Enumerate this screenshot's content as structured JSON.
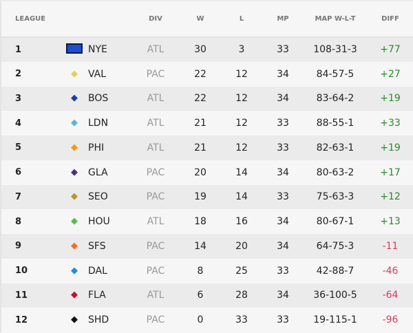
{
  "headers": {
    "league": "LEAGUE",
    "div": "DIV",
    "w": "W",
    "l": "L",
    "mp": "MP",
    "map": "MAP W-L-T",
    "diff": "DIFF"
  },
  "colors": {
    "positive": "#2a8a2a",
    "negative": "#d93a5e"
  },
  "rows": [
    {
      "rank": "1",
      "team": "NYE",
      "logo": "nye-logo",
      "logo_color": "#1f4ccf",
      "div": "ATL",
      "w": "30",
      "l": "3",
      "mp": "33",
      "map": "108-31-3",
      "diff": "+77"
    },
    {
      "rank": "2",
      "team": "VAL",
      "logo": "val-logo",
      "logo_color": "#e5d15a",
      "div": "PAC",
      "w": "22",
      "l": "12",
      "mp": "34",
      "map": "84-57-5",
      "diff": "+27"
    },
    {
      "rank": "3",
      "team": "BOS",
      "logo": "bos-logo",
      "logo_color": "#1b3fa8",
      "div": "ATL",
      "w": "22",
      "l": "12",
      "mp": "34",
      "map": "83-64-2",
      "diff": "+19"
    },
    {
      "rank": "4",
      "team": "LDN",
      "logo": "ldn-logo",
      "logo_color": "#5bb8d4",
      "div": "ATL",
      "w": "21",
      "l": "12",
      "mp": "33",
      "map": "88-55-1",
      "diff": "+33"
    },
    {
      "rank": "5",
      "team": "PHI",
      "logo": "phi-logo",
      "logo_color": "#f39a1e",
      "div": "ATL",
      "w": "21",
      "l": "12",
      "mp": "33",
      "map": "82-63-1",
      "diff": "+19"
    },
    {
      "rank": "6",
      "team": "GLA",
      "logo": "gla-logo",
      "logo_color": "#4b2e83",
      "div": "PAC",
      "w": "20",
      "l": "14",
      "mp": "34",
      "map": "80-63-2",
      "diff": "+17"
    },
    {
      "rank": "7",
      "team": "SEO",
      "logo": "seo-logo",
      "logo_color": "#b8962e",
      "div": "PAC",
      "w": "19",
      "l": "14",
      "mp": "33",
      "map": "75-63-3",
      "diff": "+12"
    },
    {
      "rank": "8",
      "team": "HOU",
      "logo": "hou-logo",
      "logo_color": "#5dbb46",
      "div": "ATL",
      "w": "18",
      "l": "16",
      "mp": "34",
      "map": "80-67-1",
      "diff": "+13"
    },
    {
      "rank": "9",
      "team": "SFS",
      "logo": "sfs-logo",
      "logo_color": "#f26b2b",
      "div": "PAC",
      "w": "14",
      "l": "20",
      "mp": "34",
      "map": "64-75-3",
      "diff": "-11"
    },
    {
      "rank": "10",
      "team": "DAL",
      "logo": "dal-logo",
      "logo_color": "#1c8fd8",
      "div": "PAC",
      "w": "8",
      "l": "25",
      "mp": "33",
      "map": "42-88-7",
      "diff": "-46"
    },
    {
      "rank": "11",
      "team": "FLA",
      "logo": "fla-logo",
      "logo_color": "#c8102e",
      "div": "ATL",
      "w": "6",
      "l": "28",
      "mp": "34",
      "map": "36-100-5",
      "diff": "-64"
    },
    {
      "rank": "12",
      "team": "SHD",
      "logo": "shd-logo",
      "logo_color": "#111111",
      "div": "PAC",
      "w": "0",
      "l": "33",
      "mp": "33",
      "map": "19-115-1",
      "diff": "-96"
    }
  ]
}
